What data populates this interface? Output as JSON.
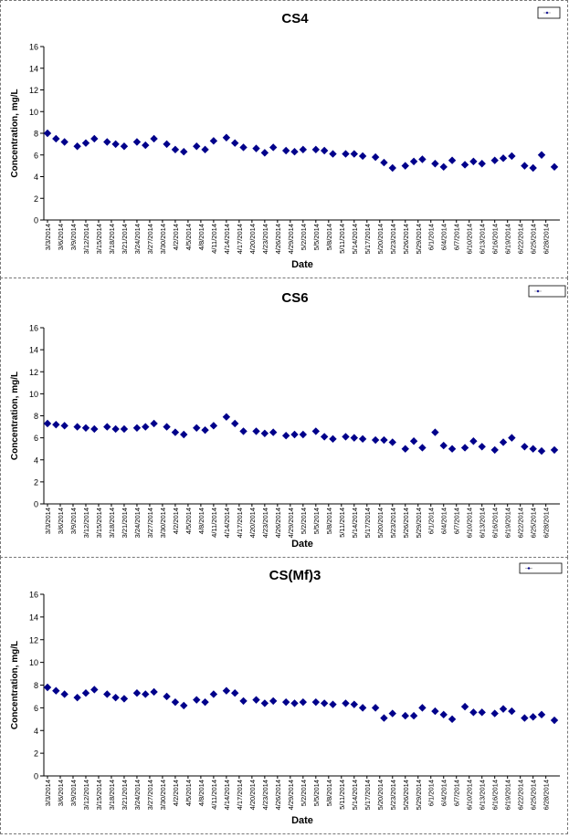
{
  "chart_data": [
    {
      "type": "scatter",
      "title": "CS4",
      "xlabel": "Date",
      "ylabel": "Concentration, mg/L",
      "ylim": [
        0,
        16
      ],
      "yticks": [
        0,
        2,
        4,
        6,
        8,
        10,
        12,
        14,
        16
      ],
      "xtick_labels": [
        "3/3/2014",
        "3/6/2014",
        "3/9/2014",
        "3/12/2014",
        "3/15/2014",
        "3/18/2014",
        "3/21/2014",
        "3/24/2014",
        "3/27/2014",
        "3/30/2014",
        "4/2/2014",
        "4/5/2014",
        "4/8/2014",
        "4/11/2014",
        "4/14/2014",
        "4/17/2014",
        "4/20/2014",
        "4/23/2014",
        "4/26/2014",
        "4/29/2014",
        "5/2/2014",
        "5/5/2014",
        "5/8/2014",
        "5/11/2014",
        "5/14/2014",
        "5/17/2014",
        "5/20/2014",
        "5/23/2014",
        "5/26/2014",
        "5/29/2014",
        "6/1/2014",
        "6/4/2014",
        "6/7/2014",
        "6/10/2014",
        "6/13/2014",
        "6/16/2014",
        "6/19/2014",
        "6/22/2014",
        "6/25/2014",
        "6/28/2014"
      ],
      "legend_position": "top-right",
      "grid": false,
      "marker_color": "#00008B",
      "series": [
        {
          "values": [
            [
              "3/3/2014",
              8.0
            ],
            [
              "3/5/2014",
              7.5
            ],
            [
              "3/7/2014",
              7.2
            ],
            [
              "3/10/2014",
              6.8
            ],
            [
              "3/12/2014",
              7.1
            ],
            [
              "3/14/2014",
              7.5
            ],
            [
              "3/17/2014",
              7.2
            ],
            [
              "3/19/2014",
              7.0
            ],
            [
              "3/21/2014",
              6.8
            ],
            [
              "3/24/2014",
              7.2
            ],
            [
              "3/26/2014",
              6.9
            ],
            [
              "3/28/2014",
              7.5
            ],
            [
              "3/31/2014",
              7.0
            ],
            [
              "4/2/2014",
              6.5
            ],
            [
              "4/4/2014",
              6.3
            ],
            [
              "4/7/2014",
              6.8
            ],
            [
              "4/9/2014",
              6.5
            ],
            [
              "4/11/2014",
              7.3
            ],
            [
              "4/14/2014",
              7.6
            ],
            [
              "4/16/2014",
              7.1
            ],
            [
              "4/18/2014",
              6.7
            ],
            [
              "4/21/2014",
              6.6
            ],
            [
              "4/23/2014",
              6.2
            ],
            [
              "4/25/2014",
              6.7
            ],
            [
              "4/28/2014",
              6.4
            ],
            [
              "4/30/2014",
              6.3
            ],
            [
              "5/2/2014",
              6.5
            ],
            [
              "5/5/2014",
              6.5
            ],
            [
              "5/7/2014",
              6.4
            ],
            [
              "5/9/2014",
              6.1
            ],
            [
              "5/12/2014",
              6.1
            ],
            [
              "5/14/2014",
              6.1
            ],
            [
              "5/16/2014",
              5.9
            ],
            [
              "5/19/2014",
              5.8
            ],
            [
              "5/21/2014",
              5.3
            ],
            [
              "5/23/2014",
              4.8
            ],
            [
              "5/26/2014",
              5.0
            ],
            [
              "5/28/2014",
              5.4
            ],
            [
              "5/30/2014",
              5.6
            ],
            [
              "6/2/2014",
              5.2
            ],
            [
              "6/4/2014",
              4.9
            ],
            [
              "6/6/2014",
              5.5
            ],
            [
              "6/9/2014",
              5.1
            ],
            [
              "6/11/2014",
              5.4
            ],
            [
              "6/13/2014",
              5.2
            ],
            [
              "6/16/2014",
              5.5
            ],
            [
              "6/18/2014",
              5.7
            ],
            [
              "6/20/2014",
              5.9
            ],
            [
              "6/23/2014",
              5.0
            ],
            [
              "6/25/2014",
              4.8
            ],
            [
              "6/27/2014",
              6.0
            ],
            [
              "6/30/2014",
              4.9
            ]
          ]
        }
      ]
    },
    {
      "type": "scatter",
      "title": "CS6",
      "xlabel": "Date",
      "ylabel": "Concentration, mg/L",
      "ylim": [
        0,
        16
      ],
      "yticks": [
        0,
        2,
        4,
        6,
        8,
        10,
        12,
        14,
        16
      ],
      "xtick_labels": [
        "3/3/2014",
        "3/6/2014",
        "3/9/2014",
        "3/12/2014",
        "3/15/2014",
        "3/18/2014",
        "3/21/2014",
        "3/24/2014",
        "3/27/2014",
        "3/30/2014",
        "4/2/2014",
        "4/5/2014",
        "4/8/2014",
        "4/11/2014",
        "4/14/2014",
        "4/17/2014",
        "4/20/2014",
        "4/23/2014",
        "4/26/2014",
        "4/29/2014",
        "5/2/2014",
        "5/5/2014",
        "5/8/2014",
        "5/11/2014",
        "5/14/2014",
        "5/17/2014",
        "5/20/2014",
        "5/23/2014",
        "5/26/2014",
        "5/29/2014",
        "6/1/2014",
        "6/4/2014",
        "6/7/2014",
        "6/10/2014",
        "6/13/2014",
        "6/16/2014",
        "6/19/2014",
        "6/22/2014",
        "6/25/2014",
        "6/28/2014"
      ],
      "legend_position": "top-right",
      "grid": false,
      "marker_color": "#00008B",
      "series": [
        {
          "values": [
            [
              "3/3/2014",
              7.3
            ],
            [
              "3/5/2014",
              7.2
            ],
            [
              "3/7/2014",
              7.1
            ],
            [
              "3/10/2014",
              7.0
            ],
            [
              "3/12/2014",
              6.9
            ],
            [
              "3/14/2014",
              6.8
            ],
            [
              "3/17/2014",
              7.0
            ],
            [
              "3/19/2014",
              6.8
            ],
            [
              "3/21/2014",
              6.8
            ],
            [
              "3/24/2014",
              6.9
            ],
            [
              "3/26/2014",
              7.0
            ],
            [
              "3/28/2014",
              7.3
            ],
            [
              "3/31/2014",
              7.0
            ],
            [
              "4/2/2014",
              6.5
            ],
            [
              "4/4/2014",
              6.3
            ],
            [
              "4/7/2014",
              6.9
            ],
            [
              "4/9/2014",
              6.7
            ],
            [
              "4/11/2014",
              7.1
            ],
            [
              "4/14/2014",
              7.9
            ],
            [
              "4/16/2014",
              7.3
            ],
            [
              "4/18/2014",
              6.6
            ],
            [
              "4/21/2014",
              6.6
            ],
            [
              "4/23/2014",
              6.4
            ],
            [
              "4/25/2014",
              6.5
            ],
            [
              "4/28/2014",
              6.2
            ],
            [
              "4/30/2014",
              6.3
            ],
            [
              "5/2/2014",
              6.3
            ],
            [
              "5/5/2014",
              6.6
            ],
            [
              "5/7/2014",
              6.1
            ],
            [
              "5/9/2014",
              5.9
            ],
            [
              "5/12/2014",
              6.1
            ],
            [
              "5/14/2014",
              6.0
            ],
            [
              "5/16/2014",
              5.9
            ],
            [
              "5/19/2014",
              5.8
            ],
            [
              "5/21/2014",
              5.8
            ],
            [
              "5/23/2014",
              5.6
            ],
            [
              "5/26/2014",
              5.0
            ],
            [
              "5/28/2014",
              5.7
            ],
            [
              "5/30/2014",
              5.1
            ],
            [
              "6/2/2014",
              6.5
            ],
            [
              "6/4/2014",
              5.3
            ],
            [
              "6/6/2014",
              5.0
            ],
            [
              "6/9/2014",
              5.1
            ],
            [
              "6/11/2014",
              5.7
            ],
            [
              "6/13/2014",
              5.2
            ],
            [
              "6/16/2014",
              4.9
            ],
            [
              "6/18/2014",
              5.6
            ],
            [
              "6/20/2014",
              6.0
            ],
            [
              "6/23/2014",
              5.2
            ],
            [
              "6/25/2014",
              5.0
            ],
            [
              "6/27/2014",
              4.8
            ],
            [
              "6/30/2014",
              4.9
            ]
          ]
        }
      ]
    },
    {
      "type": "scatter",
      "title": "CS(Mf)3",
      "xlabel": "Date",
      "ylabel": "Concentration, mg/L",
      "ylim": [
        0,
        16
      ],
      "yticks": [
        0,
        2,
        4,
        6,
        8,
        10,
        12,
        14,
        16
      ],
      "xtick_labels": [
        "3/3/2014",
        "3/6/2014",
        "3/9/2014",
        "3/12/2014",
        "3/15/2014",
        "3/18/2014",
        "3/21/2014",
        "3/24/2014",
        "3/27/2014",
        "3/30/2014",
        "4/2/2014",
        "4/5/2014",
        "4/8/2014",
        "4/11/2014",
        "4/14/2014",
        "4/17/2014",
        "4/20/2014",
        "4/23/2014",
        "4/26/2014",
        "4/29/2014",
        "5/2/2014",
        "5/5/2014",
        "5/8/2014",
        "5/11/2014",
        "5/14/2014",
        "5/17/2014",
        "5/20/2014",
        "5/23/2014",
        "5/26/2014",
        "5/29/2014",
        "6/1/2014",
        "6/4/2014",
        "6/7/2014",
        "6/10/2014",
        "6/13/2014",
        "6/16/2014",
        "6/19/2014",
        "6/22/2014",
        "6/25/2014",
        "6/28/2014"
      ],
      "legend_position": "top-right",
      "grid": false,
      "marker_color": "#00008B",
      "series": [
        {
          "values": [
            [
              "3/3/2014",
              7.8
            ],
            [
              "3/5/2014",
              7.5
            ],
            [
              "3/7/2014",
              7.2
            ],
            [
              "3/10/2014",
              6.9
            ],
            [
              "3/12/2014",
              7.3
            ],
            [
              "3/14/2014",
              7.6
            ],
            [
              "3/17/2014",
              7.2
            ],
            [
              "3/19/2014",
              6.9
            ],
            [
              "3/21/2014",
              6.8
            ],
            [
              "3/24/2014",
              7.3
            ],
            [
              "3/26/2014",
              7.2
            ],
            [
              "3/28/2014",
              7.4
            ],
            [
              "3/31/2014",
              7.0
            ],
            [
              "4/2/2014",
              6.5
            ],
            [
              "4/4/2014",
              6.2
            ],
            [
              "4/7/2014",
              6.7
            ],
            [
              "4/9/2014",
              6.5
            ],
            [
              "4/11/2014",
              7.2
            ],
            [
              "4/14/2014",
              7.5
            ],
            [
              "4/16/2014",
              7.3
            ],
            [
              "4/18/2014",
              6.6
            ],
            [
              "4/21/2014",
              6.7
            ],
            [
              "4/23/2014",
              6.4
            ],
            [
              "4/25/2014",
              6.6
            ],
            [
              "4/28/2014",
              6.5
            ],
            [
              "4/30/2014",
              6.4
            ],
            [
              "5/2/2014",
              6.5
            ],
            [
              "5/5/2014",
              6.5
            ],
            [
              "5/7/2014",
              6.4
            ],
            [
              "5/9/2014",
              6.3
            ],
            [
              "5/12/2014",
              6.4
            ],
            [
              "5/14/2014",
              6.3
            ],
            [
              "5/16/2014",
              6.0
            ],
            [
              "5/19/2014",
              6.0
            ],
            [
              "5/21/2014",
              5.1
            ],
            [
              "5/23/2014",
              5.5
            ],
            [
              "5/26/2014",
              5.3
            ],
            [
              "5/28/2014",
              5.3
            ],
            [
              "5/30/2014",
              6.0
            ],
            [
              "6/2/2014",
              5.7
            ],
            [
              "6/4/2014",
              5.4
            ],
            [
              "6/6/2014",
              5.0
            ],
            [
              "6/9/2014",
              6.1
            ],
            [
              "6/11/2014",
              5.6
            ],
            [
              "6/13/2014",
              5.6
            ],
            [
              "6/16/2014",
              5.5
            ],
            [
              "6/18/2014",
              5.9
            ],
            [
              "6/20/2014",
              5.7
            ],
            [
              "6/23/2014",
              5.1
            ],
            [
              "6/25/2014",
              5.2
            ],
            [
              "6/27/2014",
              5.4
            ],
            [
              "6/30/2014",
              4.9
            ]
          ]
        }
      ]
    }
  ]
}
